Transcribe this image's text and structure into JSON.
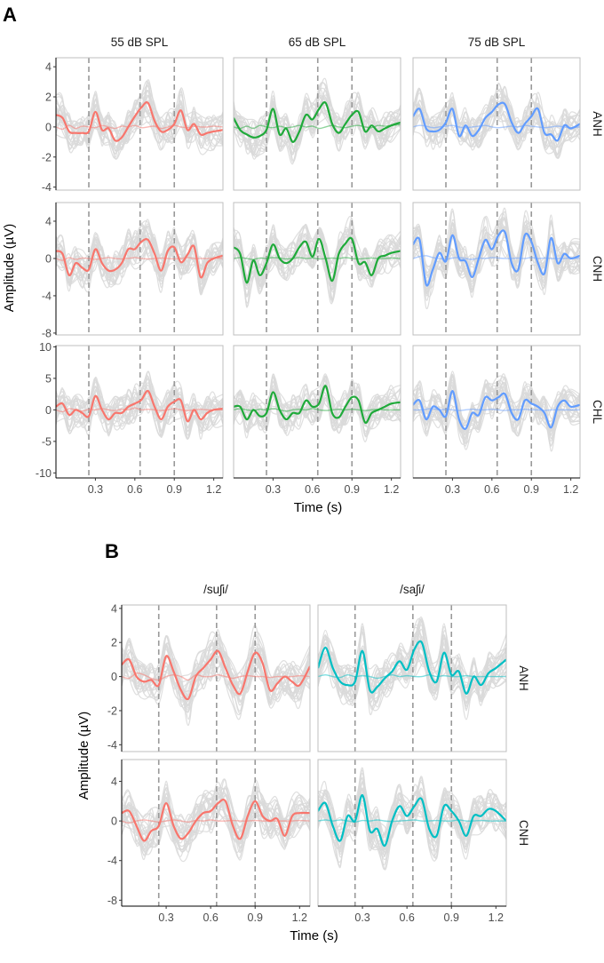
{
  "figure": {
    "panel_A_label": "A",
    "panel_B_label": "B",
    "colors": {
      "red": "#F8766D",
      "green": "#1FAA3A",
      "blue": "#619CFF",
      "teal": "#00BFC4",
      "grey_traces": "#d9d9d9",
      "dashed": "#999999",
      "frame": "#bfbfbf"
    }
  },
  "chart_data": [
    {
      "type": "line",
      "panel": "A",
      "columns": [
        "55 dB SPL",
        "65 dB SPL",
        "75 dB SPL"
      ],
      "column_colors": [
        "#F8766D",
        "#1FAA3A",
        "#619CFF"
      ],
      "rows": [
        "ANH",
        "CNH",
        "CHL"
      ],
      "xlabel": "Time (s)",
      "ylabel": "Amplitude (µV)",
      "xlim": [
        0.0,
        1.27
      ],
      "x_ticks": [
        0.3,
        0.6,
        0.9,
        1.2
      ],
      "x_tick_labels": [
        "0.3",
        "0.6",
        "0.9",
        "1.2"
      ],
      "vlines": [
        0.25,
        0.64,
        0.9
      ],
      "row_axes": [
        {
          "row": "ANH",
          "ylim": [
            -4.2,
            4.6
          ],
          "y_ticks": [
            -4,
            -2,
            0,
            2,
            4
          ],
          "y_tick_labels": [
            "-4",
            "-2",
            "0",
            "2",
            "4"
          ]
        },
        {
          "row": "CNH",
          "ylim": [
            -8.2,
            6.0
          ],
          "y_ticks": [
            -8,
            -4,
            0,
            4
          ],
          "y_tick_labels": [
            "-8",
            "-4",
            "0",
            "4"
          ]
        },
        {
          "row": "CHL",
          "ylim": [
            -10.8,
            10.2
          ],
          "y_ticks": [
            -10,
            -5,
            0,
            5,
            10
          ],
          "y_tick_labels": [
            "-10",
            "-5",
            "0",
            "5",
            "10"
          ]
        }
      ],
      "mean_curve_keypoints_x": [
        0.0,
        0.05,
        0.1,
        0.15,
        0.2,
        0.25,
        0.3,
        0.35,
        0.4,
        0.45,
        0.5,
        0.55,
        0.6,
        0.65,
        0.7,
        0.75,
        0.8,
        0.85,
        0.9,
        0.95,
        1.0,
        1.05,
        1.1,
        1.15,
        1.2,
        1.27
      ],
      "series": [
        {
          "row": "ANH",
          "column": "55 dB SPL",
          "y": [
            0.8,
            0.6,
            -0.3,
            -0.4,
            -0.4,
            -0.3,
            1.0,
            -0.2,
            -0.1,
            -0.9,
            -0.7,
            0.0,
            0.7,
            1.3,
            1.6,
            0.4,
            -0.3,
            -0.2,
            0.2,
            1.1,
            -0.2,
            0.2,
            -0.5,
            -0.4,
            -0.3,
            -0.2
          ],
          "baseline": [
            0.0,
            -0.15,
            0.1,
            -0.1,
            0.05,
            0.0,
            -0.05,
            0.1,
            0.0,
            -0.1,
            0.05,
            0.0,
            0.1,
            -0.05,
            0.0,
            0.05,
            -0.1,
            0.0,
            0.1,
            0.0,
            -0.05,
            0.05,
            0.0,
            0.0,
            0.05,
            0.0
          ]
        },
        {
          "row": "ANH",
          "column": "65 dB SPL",
          "y": [
            0.6,
            -0.2,
            -0.5,
            -0.7,
            -0.6,
            -0.2,
            1.2,
            -0.5,
            -0.1,
            -1.0,
            -0.3,
            0.8,
            0.5,
            1.2,
            1.6,
            0.2,
            -0.4,
            0.2,
            0.8,
            1.0,
            -0.3,
            0.1,
            -0.3,
            -0.1,
            0.1,
            0.3
          ],
          "baseline": [
            0.0,
            -0.1,
            0.05,
            -0.1,
            0.1,
            0.0,
            -0.05,
            0.05,
            -0.05,
            0.0,
            0.1,
            0.0,
            0.05,
            -0.1,
            0.0,
            0.1,
            0.0,
            -0.05,
            0.05,
            0.1,
            0.0,
            -0.05,
            0.1,
            0.05,
            0.1,
            0.15
          ]
        },
        {
          "row": "ANH",
          "column": "75 dB SPL",
          "y": [
            0.7,
            1.2,
            -0.1,
            -0.3,
            -0.2,
            0.3,
            1.2,
            -0.6,
            0.1,
            -0.6,
            -0.2,
            0.6,
            1.0,
            1.5,
            1.5,
            0.3,
            -0.4,
            0.2,
            0.7,
            1.2,
            -0.4,
            -0.5,
            -0.9,
            0.1,
            -0.1,
            0.2
          ],
          "baseline": [
            0.0,
            0.1,
            0.05,
            -0.05,
            0.0,
            0.05,
            0.1,
            0.0,
            -0.05,
            0.0,
            0.05,
            0.1,
            0.0,
            -0.05,
            0.0,
            0.05,
            0.0,
            0.1,
            0.05,
            0.0,
            -0.05,
            0.0,
            0.05,
            0.0,
            -0.05,
            0.0
          ]
        },
        {
          "row": "CNH",
          "column": "55 dB SPL",
          "y": [
            0.8,
            0.5,
            -1.8,
            -0.5,
            -1.0,
            -1.2,
            1.0,
            -0.5,
            -1.3,
            -1.2,
            -0.5,
            1.0,
            1.0,
            1.8,
            2.0,
            0.5,
            -1.3,
            0.8,
            1.2,
            -0.4,
            0.4,
            1.3,
            -2.0,
            -0.5,
            0.0,
            0.3
          ],
          "baseline": [
            0.0,
            -0.2,
            0.1,
            -0.1,
            0.05,
            0.0,
            -0.1,
            0.0,
            0.1,
            0.0,
            -0.05,
            0.0,
            0.1,
            0.0,
            -0.05,
            0.0,
            0.05,
            0.0,
            -0.05,
            0.0,
            0.1,
            0.0,
            0.0,
            0.0,
            0.05,
            0.0
          ]
        },
        {
          "row": "CNH",
          "column": "65 dB SPL",
          "y": [
            1.2,
            0.5,
            -2.6,
            -0.2,
            -1.8,
            -0.5,
            1.5,
            0.0,
            -0.5,
            0.0,
            1.2,
            1.8,
            0.2,
            2.1,
            0.0,
            -2.4,
            0.5,
            1.6,
            2.1,
            -0.5,
            -0.4,
            -1.8,
            0.0,
            0.3,
            0.6,
            0.8
          ],
          "baseline": [
            0.0,
            0.1,
            0.0,
            -0.1,
            0.05,
            0.0,
            0.1,
            0.05,
            -0.05,
            0.0,
            0.1,
            0.0,
            0.05,
            -0.05,
            0.0,
            0.05,
            0.0,
            0.1,
            0.0,
            -0.05,
            0.0,
            0.05,
            0.0,
            0.0,
            0.05,
            0.0
          ]
        },
        {
          "row": "CNH",
          "column": "75 dB SPL",
          "y": [
            1.5,
            2.0,
            -2.8,
            -1.2,
            0.6,
            -0.3,
            2.5,
            0.0,
            -0.3,
            -2.0,
            0.0,
            2.0,
            1.0,
            2.5,
            2.8,
            -0.5,
            -1.2,
            2.5,
            1.8,
            -0.5,
            -1.6,
            2.2,
            -0.5,
            0.5,
            0.0,
            0.3
          ],
          "baseline": [
            0.0,
            0.2,
            0.3,
            0.1,
            0.0,
            -0.1,
            0.05,
            0.1,
            0.0,
            -0.1,
            0.05,
            0.0,
            0.1,
            0.05,
            0.0,
            0.0,
            0.05,
            0.0,
            0.1,
            0.0,
            0.05,
            0.0,
            0.0,
            0.0,
            0.05,
            0.0
          ]
        },
        {
          "row": "CHL",
          "column": "55 dB SPL",
          "y": [
            0.5,
            1.0,
            -0.8,
            0.0,
            -0.5,
            -1.0,
            2.2,
            0.0,
            -1.5,
            -0.5,
            -0.5,
            0.5,
            1.0,
            1.6,
            3.0,
            0.5,
            -1.5,
            0.5,
            1.3,
            1.5,
            -1.8,
            0.0,
            -1.5,
            -0.5,
            0.0,
            0.2
          ],
          "baseline": [
            0.0,
            -0.3,
            0.2,
            0.0,
            -0.2,
            0.1,
            0.0,
            0.2,
            0.0,
            -0.1,
            0.1,
            0.0,
            0.3,
            0.0,
            0.1,
            0.0,
            -0.1,
            0.0,
            0.2,
            0.0,
            -0.1,
            0.0,
            0.1,
            0.0,
            0.0,
            0.0
          ]
        },
        {
          "row": "CHL",
          "column": "65 dB SPL",
          "y": [
            0.5,
            0.5,
            -1.5,
            0.0,
            -1.0,
            -0.5,
            2.8,
            0.0,
            -1.5,
            -0.5,
            -0.5,
            1.5,
            0.5,
            1.0,
            3.8,
            -0.5,
            -1.2,
            0.5,
            2.0,
            1.5,
            -2.0,
            -0.5,
            0.0,
            0.5,
            1.0,
            1.2
          ],
          "baseline": [
            0.0,
            0.2,
            0.0,
            -0.1,
            0.1,
            0.0,
            0.2,
            0.0,
            -0.2,
            0.0,
            0.1,
            0.0,
            0.2,
            0.0,
            -0.1,
            0.0,
            0.1,
            0.0,
            0.1,
            0.0,
            -0.1,
            0.0,
            0.1,
            0.0,
            0.0,
            0.0
          ]
        },
        {
          "row": "CHL",
          "column": "75 dB SPL",
          "y": [
            0.8,
            1.5,
            -1.5,
            0.5,
            0.0,
            -1.0,
            3.0,
            -1.5,
            -3.0,
            -0.5,
            -0.8,
            2.0,
            1.5,
            2.0,
            2.5,
            -0.5,
            -1.5,
            1.5,
            1.0,
            0.5,
            -0.5,
            -2.8,
            0.5,
            1.5,
            0.5,
            0.8
          ],
          "baseline": [
            0.0,
            0.0,
            0.1,
            0.2,
            0.0,
            0.1,
            0.0,
            -0.1,
            0.0,
            0.1,
            0.0,
            0.0,
            0.1,
            0.0,
            -0.1,
            0.0,
            0.0,
            0.1,
            0.0,
            0.0,
            -0.1,
            0.0,
            0.0,
            0.0,
            0.0,
            0.0
          ]
        }
      ]
    },
    {
      "type": "line",
      "panel": "B",
      "columns": [
        "/suʃi/",
        "/saʃi/"
      ],
      "column_colors": [
        "#F8766D",
        "#00BFC4"
      ],
      "rows": [
        "ANH",
        "CNH"
      ],
      "xlabel": "Time (s)",
      "ylabel": "Amplitude (µV)",
      "xlim": [
        0.0,
        1.27
      ],
      "x_ticks": [
        0.3,
        0.6,
        0.9,
        1.2
      ],
      "x_tick_labels": [
        "0.3",
        "0.6",
        "0.9",
        "1.2"
      ],
      "vlines": [
        0.25,
        0.64,
        0.9
      ],
      "row_axes": [
        {
          "row": "ANH",
          "ylim": [
            -4.4,
            4.2
          ],
          "y_ticks": [
            -4,
            -2,
            0,
            2,
            4
          ],
          "y_tick_labels": [
            "-4",
            "-2",
            "0",
            "2",
            "4"
          ]
        },
        {
          "row": "CNH",
          "ylim": [
            -8.6,
            6.2
          ],
          "y_ticks": [
            -8,
            -4,
            0,
            4
          ],
          "y_tick_labels": [
            "-8",
            "-4",
            "0",
            "4"
          ]
        }
      ],
      "mean_curve_keypoints_x": [
        0.0,
        0.05,
        0.1,
        0.15,
        0.2,
        0.25,
        0.3,
        0.35,
        0.4,
        0.45,
        0.5,
        0.55,
        0.6,
        0.65,
        0.7,
        0.75,
        0.8,
        0.85,
        0.9,
        0.95,
        1.0,
        1.05,
        1.1,
        1.15,
        1.2,
        1.27
      ],
      "series": [
        {
          "row": "ANH",
          "column": "/suʃi/",
          "y": [
            0.7,
            1.0,
            0.0,
            -0.3,
            -0.2,
            -0.5,
            1.2,
            0.3,
            -0.8,
            -1.3,
            0.0,
            0.5,
            1.0,
            1.5,
            0.5,
            -0.5,
            -1.0,
            0.3,
            1.4,
            0.8,
            -0.8,
            -0.4,
            0.0,
            -0.3,
            -0.5,
            0.6
          ],
          "baseline": [
            0.0,
            -0.1,
            0.2,
            0.1,
            -0.1,
            -0.2,
            0.0,
            0.1,
            0.0,
            -0.2,
            0.1,
            0.0,
            0.0,
            0.1,
            0.0,
            -0.1,
            0.0,
            0.05,
            0.0,
            0.0,
            -0.05,
            0.0,
            0.0,
            0.0,
            0.05,
            0.0
          ]
        },
        {
          "row": "ANH",
          "column": "/saʃi/",
          "y": [
            0.5,
            1.7,
            0.5,
            -0.3,
            -0.5,
            -0.3,
            1.5,
            -0.8,
            -0.6,
            -0.1,
            0.3,
            0.9,
            0.4,
            1.6,
            2.0,
            0.3,
            -0.3,
            1.4,
            0.1,
            0.3,
            -1.0,
            0.0,
            -0.5,
            0.2,
            0.5,
            1.0
          ],
          "baseline": [
            0.0,
            0.1,
            0.0,
            -0.05,
            0.1,
            0.0,
            0.05,
            0.0,
            -0.1,
            0.0,
            0.1,
            0.0,
            0.05,
            0.0,
            0.0,
            0.1,
            0.0,
            0.05,
            0.0,
            0.0,
            0.05,
            0.0,
            0.0,
            0.0,
            0.0,
            0.0
          ]
        },
        {
          "row": "CNH",
          "column": "/suʃi/",
          "y": [
            0.8,
            1.0,
            -0.5,
            -2.0,
            -1.0,
            -0.5,
            1.8,
            -0.5,
            -1.8,
            -1.2,
            0.0,
            0.8,
            1.0,
            1.8,
            2.0,
            -0.5,
            -1.8,
            0.5,
            2.0,
            0.5,
            0.0,
            0.2,
            -1.5,
            0.5,
            0.8,
            0.8
          ],
          "baseline": [
            0.0,
            -0.2,
            0.0,
            0.1,
            0.0,
            -0.1,
            0.0,
            0.1,
            0.0,
            -0.1,
            0.05,
            0.0,
            0.1,
            0.0,
            0.0,
            0.05,
            0.0,
            0.0,
            0.05,
            0.0,
            0.0,
            0.0,
            0.0,
            0.0,
            0.05,
            0.0
          ]
        },
        {
          "row": "CNH",
          "column": "/saʃi/",
          "y": [
            1.0,
            1.8,
            -0.5,
            -2.0,
            0.5,
            0.0,
            2.6,
            -1.0,
            -0.8,
            -2.5,
            0.0,
            1.5,
            0.5,
            1.5,
            2.2,
            -0.8,
            -1.5,
            1.5,
            1.0,
            0.0,
            -1.5,
            0.5,
            0.5,
            1.2,
            1.0,
            0.0
          ],
          "baseline": [
            0.0,
            0.1,
            0.0,
            0.1,
            0.0,
            -0.1,
            0.05,
            0.0,
            0.1,
            0.0,
            -0.05,
            0.0,
            0.05,
            0.1,
            0.0,
            0.0,
            0.05,
            0.0,
            0.0,
            0.1,
            0.0,
            0.0,
            0.05,
            0.0,
            0.0,
            0.0
          ]
        }
      ]
    }
  ]
}
